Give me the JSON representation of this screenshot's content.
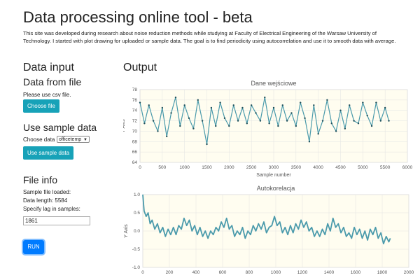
{
  "header": {
    "title": "Data processing online tool - beta",
    "intro": "This site was developed during research about noise reduction methods while studying at Faculty of Electrical Engineering of the Warsaw University of Technology. I started with plot drawing for uploaded or sample data. The goal is to find periodicity using autocorrelation and use it to smooth data with average."
  },
  "sidebar": {
    "data_input_heading": "Data input",
    "from_file_heading": "Data from file",
    "csv_hint": "Please use csv file.",
    "choose_file_label": "Choose file",
    "sample_heading": "Use sample data",
    "choose_data_label": "Choose data",
    "choose_data_selected": "officetemp",
    "use_sample_label": "Use sample data",
    "file_info_heading": "File info",
    "sample_loaded_text": "Sample file loaded:",
    "data_length_text": "Data length: 5584",
    "lag_label": "Specify lag in samples:",
    "lag_value": "1861",
    "run_label": "RUN"
  },
  "output": {
    "heading": "Output"
  },
  "colors": {
    "button_info": "#17a2b8",
    "button_primary": "#007bff",
    "series": "#4a9aab",
    "plot_bg": "#fffdf0"
  },
  "chart_data": [
    {
      "type": "line",
      "title": "Dane wejściowe",
      "xlabel": "Sample number",
      "ylabel": "Y Axis",
      "xlim": [
        0,
        6000
      ],
      "ylim": [
        64,
        78
      ],
      "xticks": [
        0,
        500,
        1000,
        1500,
        2000,
        2500,
        3000,
        3500,
        4000,
        4500,
        5000,
        5500,
        6000
      ],
      "yticks": [
        64,
        66,
        68,
        70,
        72,
        74,
        76,
        78
      ],
      "grid": true,
      "series": [
        {
          "x": [
            0,
            100,
            200,
            300,
            400,
            500,
            600,
            700,
            800,
            900,
            1000,
            1100,
            1200,
            1300,
            1400,
            1500,
            1600,
            1700,
            1800,
            1900,
            2000,
            2100,
            2200,
            2300,
            2400,
            2500,
            2600,
            2700,
            2800,
            2900,
            3000,
            3100,
            3200,
            3300,
            3400,
            3500,
            3600,
            3700,
            3800,
            3900,
            4000,
            4100,
            4200,
            4300,
            4400,
            4500,
            4600,
            4700,
            4800,
            4900,
            5000,
            5100,
            5200,
            5300,
            5400,
            5500,
            5584
          ],
          "values": [
            75.5,
            71.5,
            75.0,
            72.0,
            70.0,
            74.5,
            69.0,
            73.5,
            76.5,
            71.0,
            75.0,
            72.5,
            70.5,
            76.0,
            72.0,
            67.5,
            74.5,
            71.0,
            75.5,
            72.5,
            71.0,
            75.0,
            72.0,
            74.5,
            71.5,
            75.0,
            73.5,
            72.0,
            76.5,
            71.5,
            74.5,
            71.0,
            75.0,
            72.0,
            73.5,
            71.0,
            75.5,
            72.5,
            68.0,
            75.0,
            69.5,
            72.0,
            76.0,
            71.5,
            70.0,
            74.0,
            70.5,
            75.0,
            72.0,
            71.5,
            75.5,
            73.0,
            71.0,
            75.5,
            72.0,
            74.5,
            72.0
          ]
        }
      ]
    },
    {
      "type": "line",
      "title": "Autokorelacja",
      "xlabel": "",
      "ylabel": "Y Axis",
      "xlim": [
        0,
        2000
      ],
      "ylim": [
        -1.0,
        1.0
      ],
      "xticks": [
        0,
        200,
        400,
        600,
        800,
        1000,
        1200,
        1400,
        1600,
        1800,
        2000
      ],
      "yticks": [
        -1.0,
        -0.5,
        0,
        0.5,
        1.0
      ],
      "grid": true,
      "series": [
        {
          "x": [
            0,
            10,
            25,
            40,
            55,
            70,
            90,
            110,
            130,
            150,
            170,
            190,
            210,
            230,
            250,
            270,
            290,
            310,
            330,
            350,
            370,
            390,
            410,
            430,
            450,
            470,
            490,
            510,
            530,
            550,
            570,
            590,
            610,
            630,
            650,
            670,
            690,
            710,
            730,
            750,
            770,
            790,
            810,
            830,
            850,
            870,
            890,
            910,
            930,
            950,
            970,
            990,
            1010,
            1030,
            1050,
            1070,
            1090,
            1110,
            1130,
            1150,
            1170,
            1190,
            1210,
            1230,
            1250,
            1270,
            1290,
            1310,
            1330,
            1350,
            1370,
            1390,
            1410,
            1430,
            1450,
            1470,
            1490,
            1510,
            1530,
            1550,
            1570,
            1590,
            1610,
            1630,
            1650,
            1670,
            1690,
            1710,
            1730,
            1750,
            1770,
            1790,
            1810,
            1830,
            1850,
            1861
          ],
          "values": [
            1.0,
            0.55,
            0.4,
            0.5,
            0.2,
            0.3,
            0.05,
            0.2,
            -0.05,
            0.1,
            -0.15,
            0.05,
            -0.1,
            0.1,
            -0.1,
            0.15,
            0.05,
            0.35,
            0.15,
            0.3,
            0.0,
            0.15,
            -0.1,
            0.1,
            -0.15,
            0.0,
            -0.2,
            0.0,
            -0.1,
            0.1,
            0.0,
            0.25,
            0.1,
            0.35,
            0.05,
            0.15,
            -0.15,
            0.0,
            -0.1,
            0.1,
            -0.2,
            0.0,
            -0.1,
            0.15,
            0.0,
            0.2,
            0.05,
            0.25,
            -0.05,
            0.1,
            0.15,
            0.4,
            0.15,
            0.25,
            -0.05,
            0.1,
            -0.1,
            0.15,
            -0.05,
            0.2,
            0.05,
            0.3,
            0.1,
            0.25,
            0.0,
            0.1,
            -0.15,
            0.0,
            -0.15,
            0.05,
            -0.1,
            0.2,
            0.0,
            0.35,
            0.1,
            0.2,
            -0.05,
            0.1,
            -0.15,
            -0.05,
            -0.2,
            0.1,
            -0.1,
            0.05,
            -0.2,
            0.0,
            -0.25,
            0.05,
            -0.1,
            0.1,
            -0.2,
            -0.05,
            -0.35,
            -0.15,
            -0.3,
            -0.2
          ]
        }
      ]
    }
  ]
}
